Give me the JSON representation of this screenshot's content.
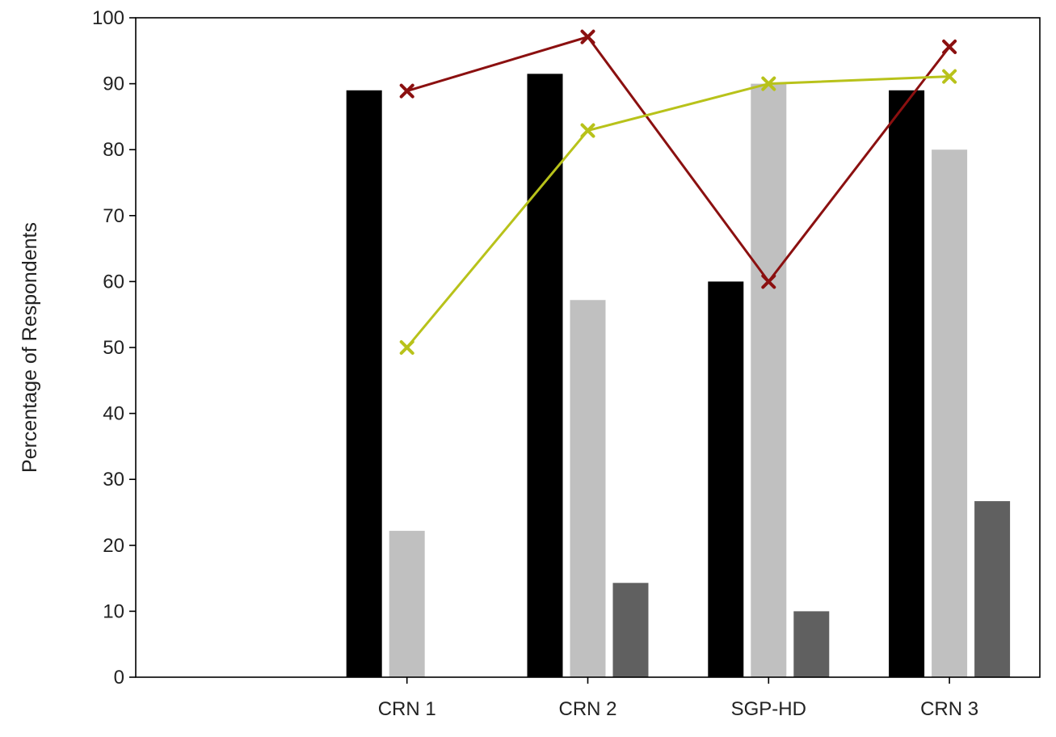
{
  "chart_data": {
    "type": "bar",
    "title": "",
    "xlabel": "",
    "ylabel": "Percentage of Respondents",
    "ylim": [
      0,
      100
    ],
    "yticks": [
      0,
      10,
      20,
      30,
      40,
      50,
      60,
      70,
      80,
      90,
      100
    ],
    "grid": false,
    "legend": "none",
    "categories": [
      "CRN 1",
      "CRN 2",
      "SGP-HD",
      "CRN 3"
    ],
    "bar_series": [
      {
        "values": [
          89,
          91.5,
          60,
          89
        ],
        "color": "#000000"
      },
      {
        "values": [
          22.2,
          57.2,
          90,
          80
        ],
        "color": "#c0c0c0"
      },
      {
        "values": [
          0,
          14.3,
          10,
          26.7
        ],
        "color": "#606060"
      }
    ],
    "line_series": [
      {
        "values": [
          88.9,
          97.1,
          60,
          95.6
        ],
        "color": "#8b1010",
        "marker": "x"
      },
      {
        "values": [
          50,
          82.9,
          90,
          91.1
        ],
        "color": "#b8c21a",
        "marker": "x"
      }
    ]
  }
}
